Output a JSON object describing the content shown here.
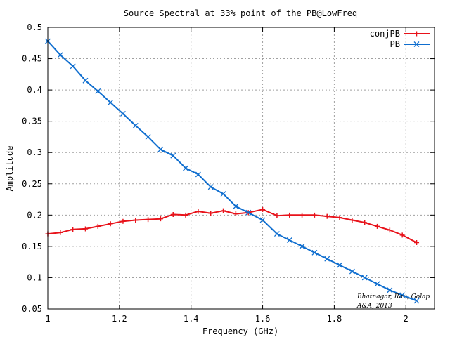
{
  "chart_data": {
    "type": "line",
    "title": "Source Spectral at 33% point of the PB@LowFreq",
    "xlabel": "Frequency (GHz)",
    "ylabel": "Amplitude",
    "xlim": [
      1.0,
      2.08
    ],
    "ylim": [
      0.05,
      0.5
    ],
    "x_ticks": [
      1,
      1.2,
      1.4,
      1.6,
      1.8,
      2
    ],
    "x_tick_labels": [
      "1",
      "1.2",
      "1.4",
      "1.6",
      "1.8",
      "2"
    ],
    "y_ticks": [
      0.05,
      0.1,
      0.15,
      0.2,
      0.25,
      0.3,
      0.35,
      0.4,
      0.45,
      0.5
    ],
    "y_tick_labels": [
      "0.05",
      "0.1",
      "0.15",
      "0.2",
      "0.25",
      "0.3",
      "0.35",
      "0.4",
      "0.45",
      "0.5"
    ],
    "grid": true,
    "legend_position": "top-right",
    "annotation": [
      "Bhatnagar, Rau, Golap",
      "A&A, 2013"
    ],
    "series": [
      {
        "name": "conjPB",
        "color": "#e8121a",
        "marker": "plus",
        "x": [
          1.0,
          1.035,
          1.07,
          1.105,
          1.14,
          1.175,
          1.21,
          1.245,
          1.28,
          1.315,
          1.35,
          1.385,
          1.42,
          1.455,
          1.49,
          1.525,
          1.56,
          1.6,
          1.64,
          1.675,
          1.71,
          1.745,
          1.78,
          1.815,
          1.85,
          1.885,
          1.92,
          1.955,
          1.99,
          2.03
        ],
        "y": [
          0.17,
          0.172,
          0.177,
          0.178,
          0.182,
          0.186,
          0.19,
          0.192,
          0.193,
          0.194,
          0.201,
          0.2,
          0.206,
          0.203,
          0.207,
          0.202,
          0.204,
          0.209,
          0.199,
          0.2,
          0.2,
          0.2,
          0.198,
          0.196,
          0.192,
          0.188,
          0.182,
          0.176,
          0.168,
          0.156
        ]
      },
      {
        "name": "PB",
        "color": "#0f6ecf",
        "marker": "cross",
        "x": [
          1.0,
          1.035,
          1.07,
          1.105,
          1.14,
          1.175,
          1.21,
          1.245,
          1.28,
          1.315,
          1.35,
          1.385,
          1.42,
          1.455,
          1.49,
          1.525,
          1.56,
          1.6,
          1.64,
          1.675,
          1.71,
          1.745,
          1.78,
          1.815,
          1.85,
          1.885,
          1.92,
          1.955,
          1.99,
          2.03
        ],
        "y": [
          0.478,
          0.456,
          0.438,
          0.415,
          0.398,
          0.38,
          0.362,
          0.343,
          0.325,
          0.305,
          0.295,
          0.275,
          0.265,
          0.245,
          0.234,
          0.214,
          0.204,
          0.192,
          0.17,
          0.16,
          0.15,
          0.14,
          0.13,
          0.12,
          0.11,
          0.1,
          0.09,
          0.08,
          0.072,
          0.063
        ]
      }
    ]
  }
}
